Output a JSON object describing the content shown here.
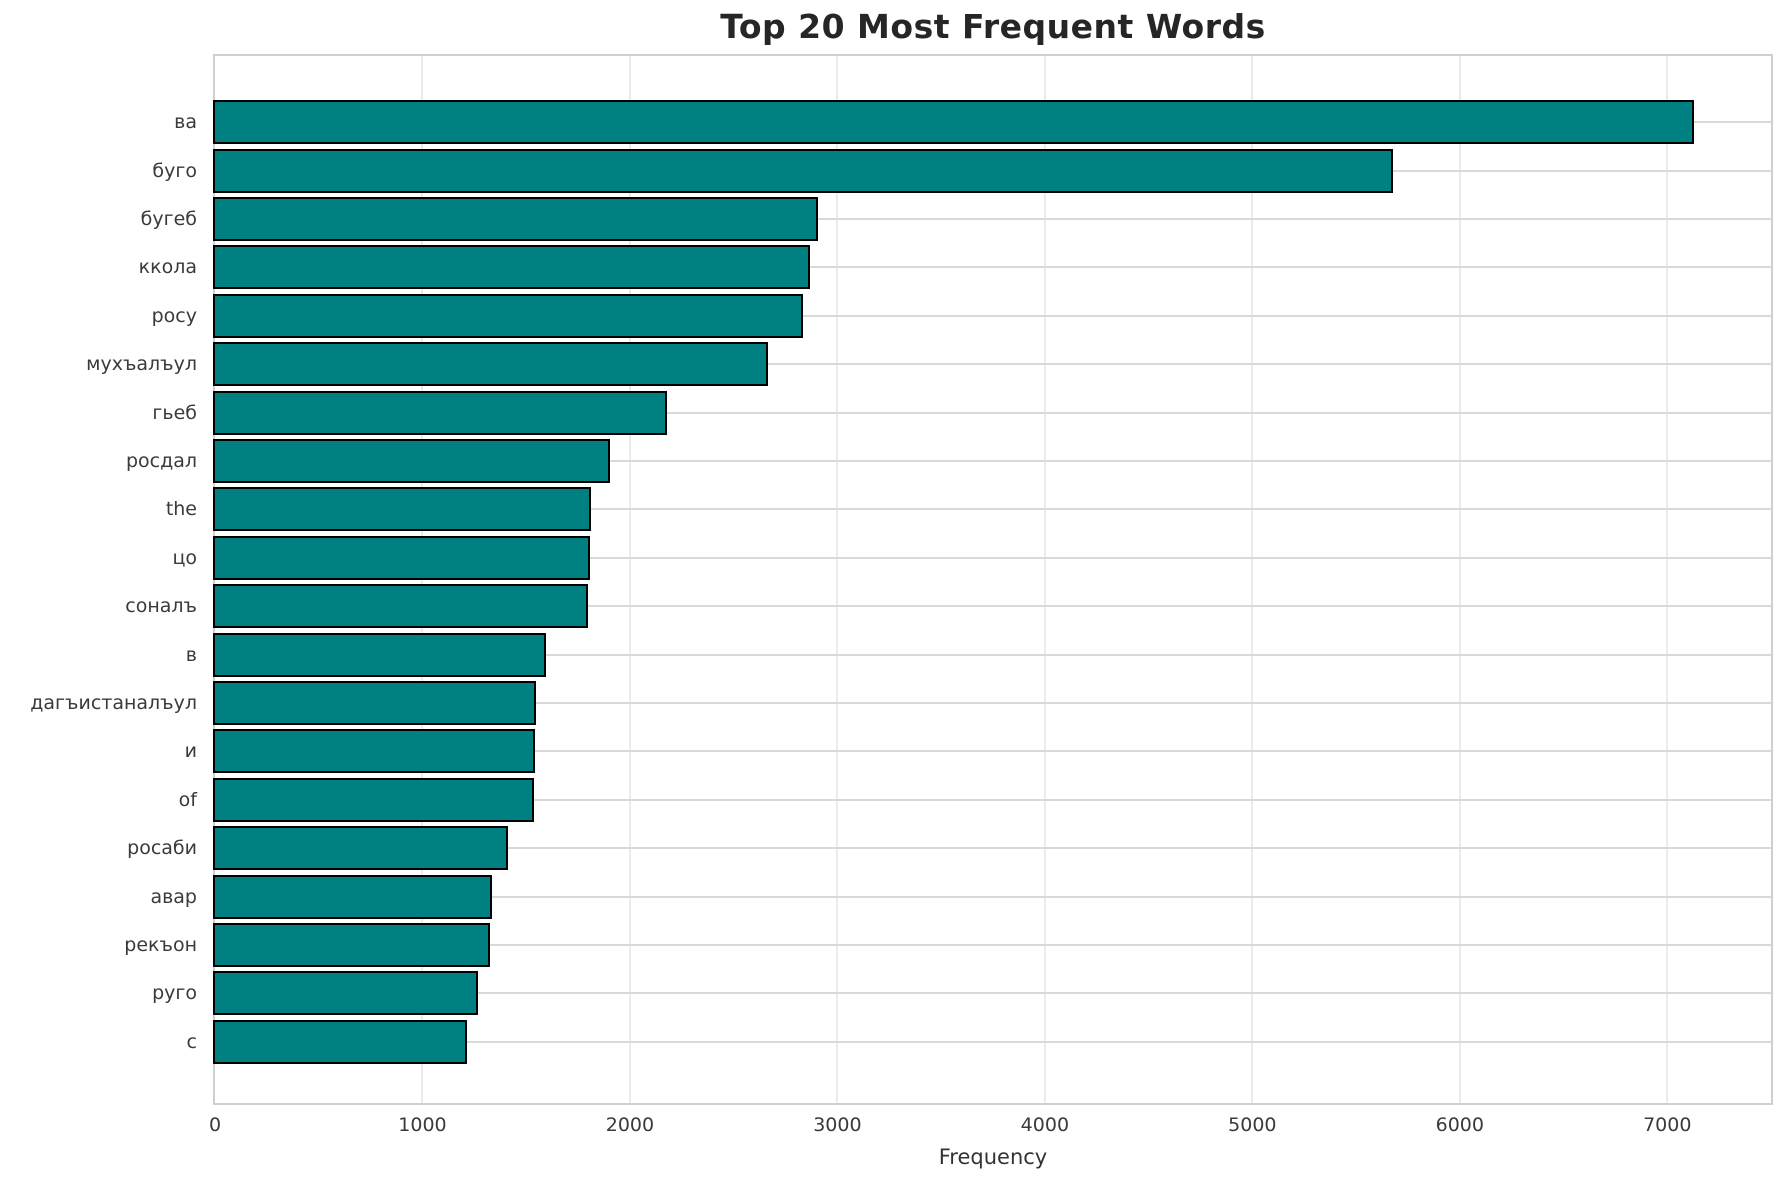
{
  "chart_data": {
    "type": "bar",
    "orientation": "horizontal",
    "title": "Top 20 Most Frequent Words",
    "xlabel": "Frequency",
    "ylabel": "",
    "categories": [
      "ва",
      "буго",
      "бугеб",
      "ккола",
      "росу",
      "мухъалъул",
      "гьеб",
      "росдал",
      "the",
      "цо",
      "соналъ",
      "в",
      "дагъистаналъул",
      "и",
      "of",
      "росаби",
      "авар",
      "рекъон",
      "руго",
      "с"
    ],
    "values": [
      7131,
      5680,
      2905,
      2868,
      2836,
      2665,
      2180,
      1905,
      1810,
      1806,
      1798,
      1594,
      1546,
      1541,
      1538,
      1414,
      1334,
      1327,
      1269,
      1216
    ],
    "xlim": [
      0,
      7500
    ],
    "xticks": [
      0,
      1000,
      2000,
      3000,
      4000,
      5000,
      6000,
      7000
    ],
    "grid": true,
    "legend": false,
    "colors": {
      "bar_fill": "#008080",
      "bar_edge": "#000000",
      "grid_vertical": "#ebebeb",
      "grid_horizontal": "#d9d9d9",
      "spine": "#cfcfcf",
      "tick_text": "#3a3a3a",
      "title_text": "#262626"
    }
  }
}
